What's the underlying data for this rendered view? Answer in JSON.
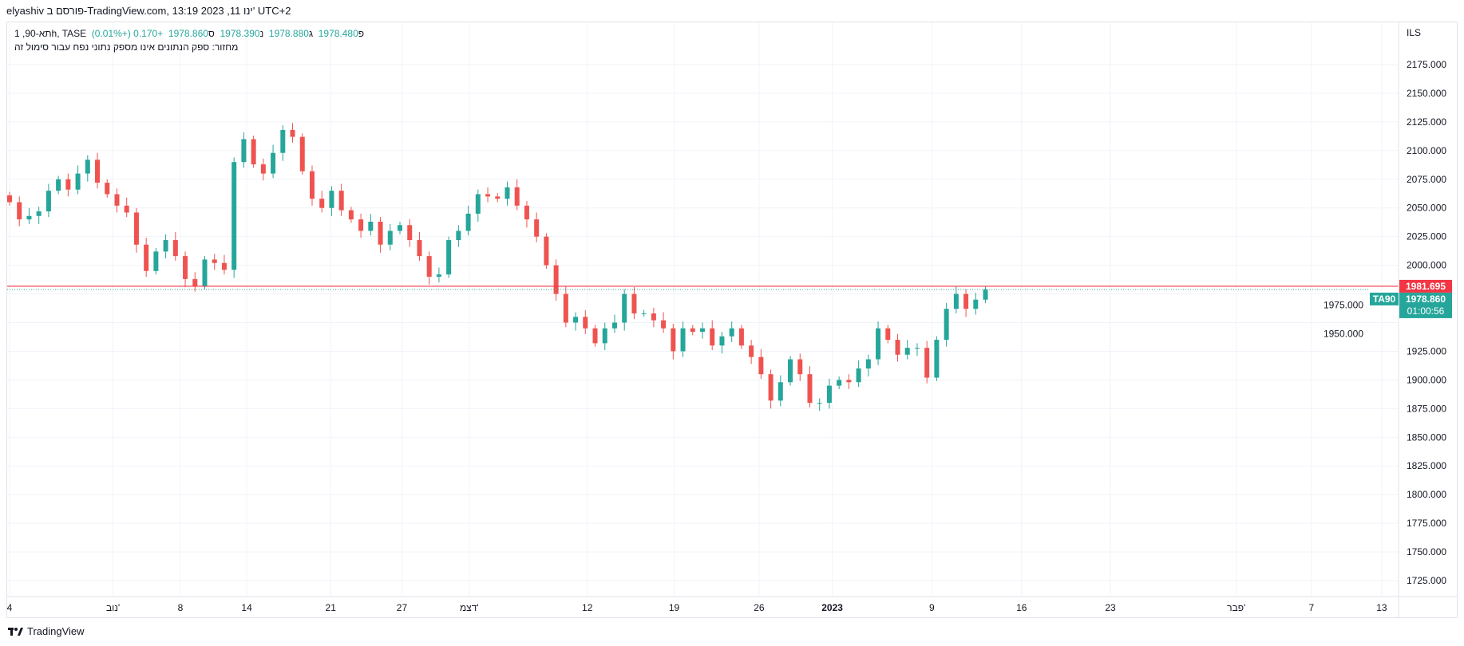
{
  "header": {
    "published_line": "elyashiv פורסם ב-TradingView.com, 13:19 2023 ,11 ינו' UTC+2"
  },
  "legend": {
    "symbol": "תא-90, 1h, TASE",
    "open_label": "פ",
    "open": "1978.480",
    "high_label": "ג",
    "high": "1978.880",
    "low_label": "נ",
    "low": "1978.390",
    "close_label": "ס",
    "close": "1978.860",
    "change": "+0.170 (+0.01%)",
    "volume_note": "מחזור: ספק הנתונים אינו מספק נתוני נפח עבור סימול זה"
  },
  "price_axis": {
    "currency": "ILS",
    "last_price_label": "1978.860",
    "countdown": "01:00:56",
    "line_price_label": "1981.695",
    "symbol_tag": "TA90"
  },
  "colors": {
    "up": "#26a69a",
    "down": "#ef5350",
    "grid": "#f0f3fa",
    "hline": "#f23645"
  },
  "chart_data": {
    "type": "candlestick",
    "ylim": [
      1712,
      2190
    ],
    "xlim": [
      0,
      142
    ],
    "grid": true,
    "y_ticks": [
      1725,
      1750,
      1775,
      1800,
      1825,
      1850,
      1875,
      1900,
      1925,
      1950,
      1975,
      2000,
      2025,
      2050,
      2075,
      2100,
      2125,
      2150,
      2175
    ],
    "y_tick_labels": [
      "1725.000",
      "1750.000",
      "1775.000",
      "1800.000",
      "1825.000",
      "1850.000",
      "1875.000",
      "1900.000",
      "1925.000",
      "1950.000",
      "1975.000",
      "2000.000",
      "2025.000",
      "2050.000",
      "2075.000",
      "2100.000",
      "2125.000",
      "2150.000",
      "2175.000"
    ],
    "x_ticks": [
      {
        "label": "4",
        "bar": 0
      },
      {
        "label": "נוב'",
        "bar": 10.6
      },
      {
        "label": "8",
        "bar": 17.5
      },
      {
        "label": "14",
        "bar": 24.3
      },
      {
        "label": "21",
        "bar": 32.9
      },
      {
        "label": "27",
        "bar": 40.2
      },
      {
        "label": "דצמ'",
        "bar": 47.1
      },
      {
        "label": "12",
        "bar": 59.2
      },
      {
        "label": "19",
        "bar": 68.1
      },
      {
        "label": "26",
        "bar": 76.8
      },
      {
        "label": "2023",
        "bar": 84.3
      },
      {
        "label": "9",
        "bar": 94.5
      },
      {
        "label": "16",
        "bar": 103.7
      },
      {
        "label": "23",
        "bar": 112.8
      },
      {
        "label": "פבר'",
        "bar": 125.7
      },
      {
        "label": "7",
        "bar": 133.4
      },
      {
        "label": "13",
        "bar": 140.6
      }
    ],
    "horizontal_line": 1981.695,
    "last_price": 1978.86,
    "close": [
      2055,
      2040,
      2043,
      2047,
      2065,
      2075,
      2066,
      2080,
      2092,
      2072,
      2062,
      2052,
      2046,
      2018,
      1995,
      2012,
      2022,
      2008,
      1988,
      1982,
      2005,
      2002,
      1996,
      2090,
      2110,
      2088,
      2080,
      2098,
      2118,
      2112,
      2082,
      2058,
      2050,
      2065,
      2048,
      2040,
      2030,
      2038,
      2018,
      2030,
      2035,
      2022,
      2008,
      1990,
      1992,
      2022,
      2030,
      2045,
      2062,
      2060,
      2058,
      2068,
      2052,
      2040,
      2025,
      2000,
      1975,
      1950,
      1955,
      1945,
      1932,
      1945,
      1950,
      1975,
      1958,
      1958,
      1952,
      1945,
      1925,
      1945,
      1942,
      1945,
      1930,
      1938,
      1945,
      1930,
      1920,
      1905,
      1882,
      1898,
      1918,
      1905,
      1880,
      1880,
      1895,
      1900,
      1898,
      1910,
      1918,
      1945,
      1935,
      1922,
      1928,
      1928,
      1902,
      1935,
      1962,
      1975,
      1962,
      1970,
      1978.86
    ]
  },
  "footer": {
    "brand": "TradingView"
  }
}
